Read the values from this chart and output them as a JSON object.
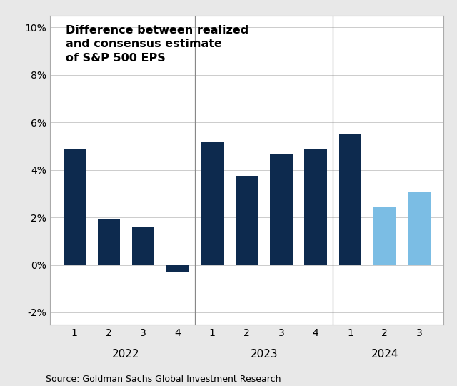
{
  "title": "Difference between realized\nand consensus estimate\nof S&P 500 EPS",
  "source": "Source: Goldman Sachs Global Investment Research",
  "values": [
    4.85,
    1.9,
    1.6,
    -0.3,
    5.15,
    3.75,
    4.65,
    4.9,
    5.5,
    2.45,
    3.1
  ],
  "bar_colors": [
    "#0d2a4e",
    "#0d2a4e",
    "#0d2a4e",
    "#0d2a4e",
    "#0d2a4e",
    "#0d2a4e",
    "#0d2a4e",
    "#0d2a4e",
    "#0d2a4e",
    "#7bbde4",
    "#7bbde4"
  ],
  "quarter_labels": [
    "1",
    "2",
    "3",
    "4",
    "1",
    "2",
    "3",
    "4",
    "1",
    "2",
    "3"
  ],
  "year_labels": [
    "2022",
    "2023",
    "2024"
  ],
  "year_group_boundaries": [
    4.5,
    8.5
  ],
  "ylim": [
    -2.5,
    10.5
  ],
  "yticks": [
    -2,
    0,
    2,
    4,
    6,
    8,
    10
  ],
  "ytick_labels": [
    "-2%",
    "0%",
    "2%",
    "4%",
    "6%",
    "8%",
    "10%"
  ],
  "bg_color": "#e8e8e8",
  "plot_bg_color": "#ffffff",
  "title_fontsize": 11.5,
  "source_fontsize": 9,
  "label_fontsize": 10,
  "year_label_fontsize": 11
}
